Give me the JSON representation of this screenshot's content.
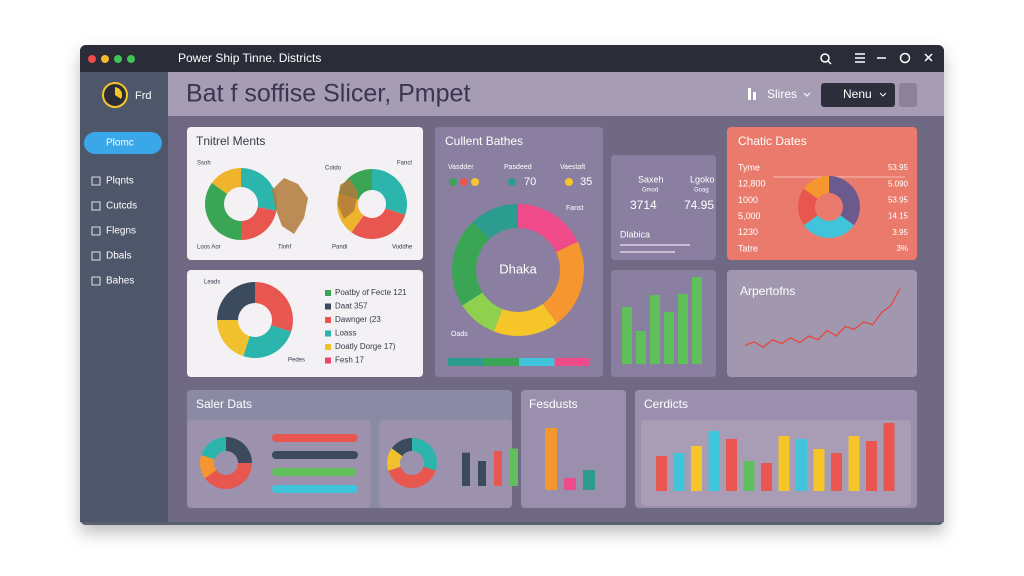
{
  "window": {
    "title": "Power Ship Tinne. Districts"
  },
  "header": {
    "logo": "Frd",
    "title": "Bat f soffise Slicer, Pmpet",
    "slicer": "Slires",
    "menu": "Nenu"
  },
  "sidebar": {
    "active": "Plomc",
    "items": [
      "Plqnts",
      "Cutcds",
      "Flegns",
      "Dbals",
      "Bahes"
    ]
  },
  "cards": [
    {
      "title": "Tnitrel Ments",
      "labels": [
        "Ssoh",
        "Loos Aor",
        "Tinhf",
        "Cotdo",
        "Fanct",
        "Pandi",
        "Voddhe"
      ],
      "donuts": [
        {
          "values": [
            28,
            22,
            35,
            15
          ],
          "colors": [
            "#2bb5ad",
            "#e8574f",
            "#3aa655",
            "#f0b32d"
          ]
        },
        {
          "values": [
            30,
            30,
            20,
            20
          ],
          "colors": [
            "#2bb5ad",
            "#e8574f",
            "#f0b32d",
            "#3aa655"
          ]
        }
      ]
    },
    {
      "labels": [
        "Leads",
        "Pedes"
      ],
      "donut": {
        "values": [
          30,
          25,
          20,
          25
        ],
        "colors": [
          "#e8574f",
          "#2bb5ad",
          "#f0c02d",
          "#3b4a5c"
        ]
      },
      "legend": [
        {
          "text": "Poatby of Fecte 121",
          "color": "#3aa655"
        },
        {
          "text": "Daat 357",
          "color": "#3b4a5c"
        },
        {
          "text": "Dawnger (23",
          "color": "#e8574f"
        },
        {
          "text": "Loass",
          "color": "#2bb5ad"
        },
        {
          "text": "Doatly Dorge 17)",
          "color": "#f0c02d"
        },
        {
          "text": "Fesh 17",
          "color": "#e8466a"
        }
      ]
    },
    {
      "title": "Cullent Bathes",
      "metrics": [
        {
          "label": "Vasdder"
        },
        {
          "label": "Pasdeed",
          "value": "70"
        },
        {
          "label": "Vaestaft",
          "value": "35"
        }
      ],
      "center": "Dhaka",
      "labels": [
        "Fanst",
        "Oads"
      ],
      "donut": {
        "values": [
          18,
          22,
          16,
          10,
          22,
          12
        ],
        "colors": [
          "#ef4a8a",
          "#f5962e",
          "#f5c52a",
          "#8fd14f",
          "#3aa655",
          "#2b9c8e"
        ]
      },
      "strip": {
        "values": [
          25,
          25,
          25,
          25
        ],
        "colors": [
          "#2b9c8e",
          "#3aa655",
          "#3fc4dc",
          "#ef4a8a"
        ]
      }
    },
    {
      "stats": [
        {
          "label": "Saxeh",
          "sub": "Gmod",
          "value": "3714"
        },
        {
          "label": "Lgoko",
          "sub": "Goag",
          "value": "74.95"
        }
      ],
      "note": "Dlabica"
    },
    {
      "bars": {
        "values": [
          57,
          33,
          69,
          52,
          70,
          87
        ],
        "ylim": [
          0,
          100
        ],
        "color": "#5fbf5a"
      }
    },
    {
      "title": "Chatic Dates",
      "rows": [
        [
          "Tyme",
          "53.95"
        ],
        [
          "12,800",
          "5.090"
        ],
        [
          "1000",
          "53.95"
        ],
        [
          "5,000",
          "14.15"
        ],
        [
          "1230",
          "3.95"
        ],
        [
          "Tatre",
          "3%"
        ]
      ],
      "donut": {
        "values": [
          35,
          30,
          20,
          15
        ],
        "colors": [
          "#6b5a8e",
          "#3fc4dc",
          "#e8574f",
          "#f5962e"
        ]
      }
    },
    {
      "title": "Arpertofns",
      "line": {
        "values": [
          10,
          14,
          8,
          16,
          12,
          18,
          13,
          20,
          16,
          26,
          20,
          30,
          27,
          35,
          32,
          45,
          52,
          70
        ],
        "ylim": [
          0,
          100
        ],
        "color": "#e8463f"
      }
    },
    {
      "title": "Saler Dats",
      "donuts": [
        {
          "values": [
            25,
            40,
            15,
            20
          ],
          "colors": [
            "#3b4a5c",
            "#e8574f",
            "#f5962e",
            "#2bb5ad"
          ]
        },
        {
          "values": [
            30,
            40,
            15,
            15
          ],
          "colors": [
            "#2bb5ad",
            "#e8574f",
            "#f0c02d",
            "#3b4a5c"
          ]
        }
      ],
      "hbars": {
        "values": [
          100,
          100,
          98,
          100
        ],
        "colors": [
          "#e8574f",
          "#3b4a5c",
          "#5fbf5a",
          "#3fc4dc"
        ],
        "xlim": [
          0,
          100
        ]
      },
      "vbars": {
        "values": [
          40,
          30,
          42,
          45
        ],
        "colors": [
          "#3b4a5c",
          "#3b4a5c",
          "#e8574f",
          "#5fbf5a"
        ],
        "ylim": [
          0,
          60
        ]
      }
    },
    {
      "title": "Fesdusts",
      "bars": {
        "values": [
          62,
          12,
          20
        ],
        "colors": [
          "#f5962e",
          "#ef4a8a",
          "#2b9c8e"
        ],
        "ylim": [
          0,
          70
        ]
      }
    },
    {
      "title": "Cerdicts",
      "bars": {
        "values": [
          35,
          38,
          45,
          60,
          52,
          30,
          28,
          55,
          52,
          42,
          38,
          55,
          50,
          68
        ],
        "colors": [
          "#e8574f",
          "#3fc4dc",
          "#f5c52a",
          "#3fc4dc",
          "#e8574f",
          "#5fbf5a",
          "#e8574f",
          "#f5c52a",
          "#3fc4dc",
          "#f5c52a",
          "#e8574f",
          "#f5c52a",
          "#e8574f",
          "#e8574f"
        ],
        "ylim": [
          0,
          70
        ]
      }
    }
  ]
}
